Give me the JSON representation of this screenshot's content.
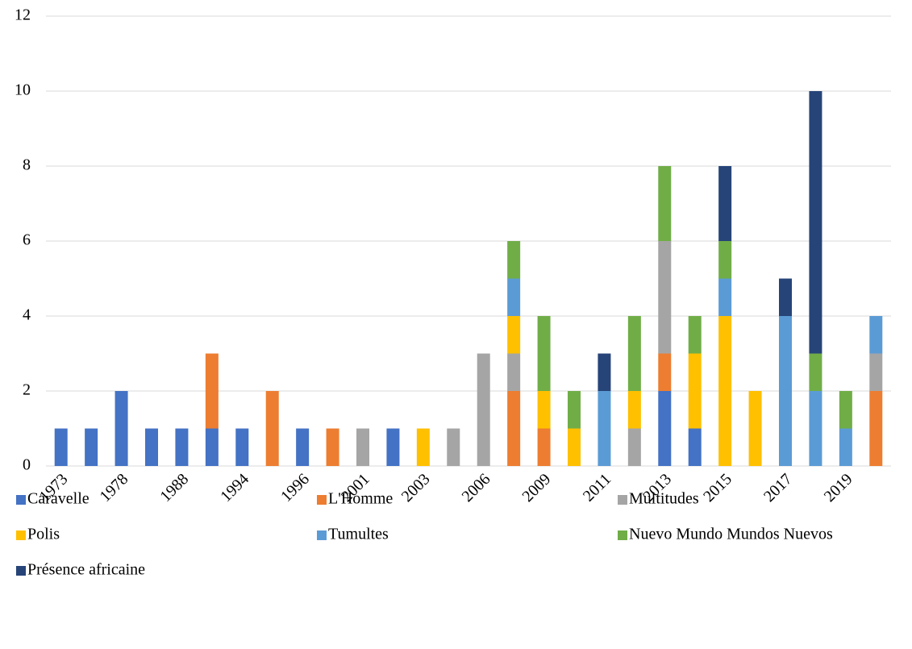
{
  "chart_data": {
    "type": "stacked_bar",
    "categories": [
      "1973",
      null,
      "1978",
      null,
      "1988",
      null,
      "1994",
      null,
      "1996",
      null,
      "2001",
      null,
      "2003",
      null,
      "2006",
      null,
      "2009",
      null,
      "2011",
      null,
      "2013",
      null,
      "2015",
      null,
      "2017",
      null,
      "2019",
      null
    ],
    "series": [
      {
        "name": "Caravelle",
        "color": "#4472c4",
        "values": [
          1,
          1,
          2,
          1,
          1,
          1,
          1,
          0,
          1,
          0,
          0,
          1,
          0,
          0,
          0,
          0,
          0,
          0,
          0,
          0,
          2,
          1,
          0,
          0,
          0,
          0,
          0,
          0
        ]
      },
      {
        "name": "L'Homme",
        "color": "#ed7d31",
        "values": [
          0,
          0,
          0,
          0,
          0,
          2,
          0,
          2,
          0,
          1,
          0,
          0,
          0,
          0,
          0,
          2,
          1,
          0,
          0,
          0,
          1,
          0,
          0,
          0,
          0,
          0,
          0,
          2
        ]
      },
      {
        "name": "Multitudes",
        "color": "#a5a5a5",
        "values": [
          0,
          0,
          0,
          0,
          0,
          0,
          0,
          0,
          0,
          0,
          1,
          0,
          0,
          1,
          3,
          1,
          0,
          0,
          0,
          1,
          3,
          0,
          0,
          0,
          0,
          0,
          0,
          1
        ]
      },
      {
        "name": "Polis",
        "color": "#ffc000",
        "values": [
          0,
          0,
          0,
          0,
          0,
          0,
          0,
          0,
          0,
          0,
          0,
          0,
          1,
          0,
          0,
          1,
          1,
          1,
          0,
          1,
          0,
          2,
          4,
          2,
          0,
          0,
          0,
          0
        ]
      },
      {
        "name": "Tumultes",
        "color": "#5b9bd5",
        "values": [
          0,
          0,
          0,
          0,
          0,
          0,
          0,
          0,
          0,
          0,
          0,
          0,
          0,
          0,
          0,
          1,
          0,
          0,
          2,
          0,
          0,
          0,
          1,
          0,
          4,
          2,
          1,
          1
        ]
      },
      {
        "name": "Nuevo Mundo Mundos Nuevos",
        "color": "#70ad47",
        "values": [
          0,
          0,
          0,
          0,
          0,
          0,
          0,
          0,
          0,
          0,
          0,
          0,
          0,
          0,
          0,
          1,
          2,
          1,
          0,
          2,
          2,
          1,
          1,
          0,
          0,
          1,
          1,
          0
        ]
      },
      {
        "name": "Présence africaine",
        "color": "#264478",
        "values": [
          0,
          0,
          0,
          0,
          0,
          0,
          0,
          0,
          0,
          0,
          0,
          0,
          0,
          0,
          0,
          0,
          0,
          0,
          1,
          0,
          0,
          0,
          2,
          0,
          1,
          7,
          0,
          0
        ]
      }
    ],
    "ylim": [
      0,
      12
    ],
    "yticks": [
      0,
      2,
      4,
      6,
      8,
      10,
      12
    ],
    "grid": true,
    "legend": "bottom"
  }
}
